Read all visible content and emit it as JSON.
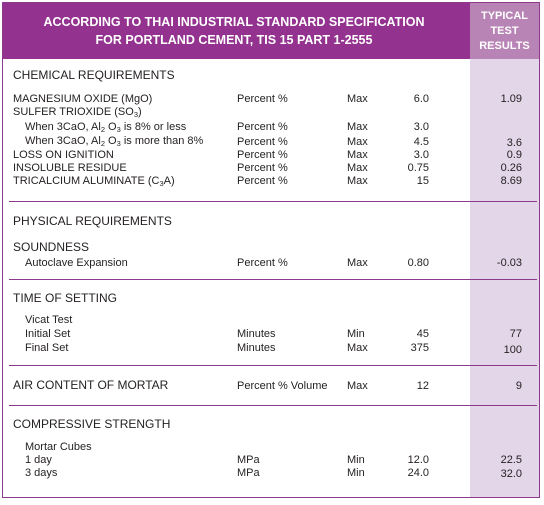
{
  "header": {
    "title_line1": "ACCORDING TO THAI INDUSTRIAL STANDARD SPECIFICATION",
    "title_line2": "FOR PORTLAND CEMENT, TIS 15 PART 1-2555",
    "results_line1": "TYPICAL",
    "results_line2": "TEST",
    "results_line3": "RESULTS"
  },
  "chemical": {
    "title": "CHEMICAL REQUIREMENTS",
    "mgo": {
      "name": "MAGNESIUM OXIDE (MgO)",
      "unit": "Percent  %",
      "limit": "Max",
      "spec": "6.0",
      "result": "1.09"
    },
    "so3": {
      "name_prefix": "SULFER TRIOXIDE (SO",
      "name_sub": "3",
      "name_suffix": ")"
    },
    "so3_a": {
      "p1": "When 3CaO, Al",
      "s1": "2",
      "p2": " O",
      "s2": "3",
      "p3": " is 8% or less",
      "unit": "Percent  %",
      "limit": "Max",
      "spec": "3.0",
      "result": ""
    },
    "so3_b": {
      "p1": "When 3CaO, Al",
      "s1": "2",
      "p2": " O",
      "s2": "3",
      "p3": " is more than 8%",
      "unit": "Percent  %",
      "limit": "Max",
      "spec": "4.5",
      "result": "3.6"
    },
    "loi": {
      "name": "LOSS ON IGNITION",
      "unit": "Percent  %",
      "limit": "Max",
      "spec": "3.0",
      "result": "0.9"
    },
    "ir": {
      "name": "INSOLUBLE RESIDUE",
      "unit": "Percent  %",
      "limit": "Max",
      "spec": "0.75",
      "result": "0.26"
    },
    "c3a": {
      "name_prefix": "TRICALCIUM ALUMINATE (C",
      "name_sub": "3",
      "name_suffix": "A)",
      "unit": "Percent  %",
      "limit": "Max",
      "spec": "15",
      "result": "8.69"
    }
  },
  "physical": {
    "title": "PHYSICAL REQUIREMENTS"
  },
  "soundness": {
    "title": "SOUNDNESS",
    "autoclave": {
      "name": "Autoclave Expansion",
      "unit": "Percent  %",
      "limit": "Max",
      "spec": "0.80",
      "result": "-0.03"
    }
  },
  "setting": {
    "title": "TIME OF SETTING",
    "vicat": "Vicat Test",
    "initial": {
      "name": "Initial Set",
      "unit": "Minutes",
      "limit": "Min",
      "spec": "45",
      "result": "77"
    },
    "final": {
      "name": "Final Set",
      "unit": "Minutes",
      "limit": "Max",
      "spec": "375",
      "result": "100"
    }
  },
  "air": {
    "title": "AIR CONTENT OF MORTAR",
    "unit": "Percent  % Volume",
    "limit": "Max",
    "spec": "12",
    "result": "9"
  },
  "compressive": {
    "title": "COMPRESSIVE STRENGTH",
    "cubes": "Mortar Cubes",
    "day1": {
      "name": "1 day",
      "unit": "MPa",
      "limit": "Min",
      "spec": "12.0",
      "result": "22.5"
    },
    "day3": {
      "name": "3 days",
      "unit": "MPa",
      "limit": "Min",
      "spec": "24.0",
      "result": "32.0"
    }
  }
}
